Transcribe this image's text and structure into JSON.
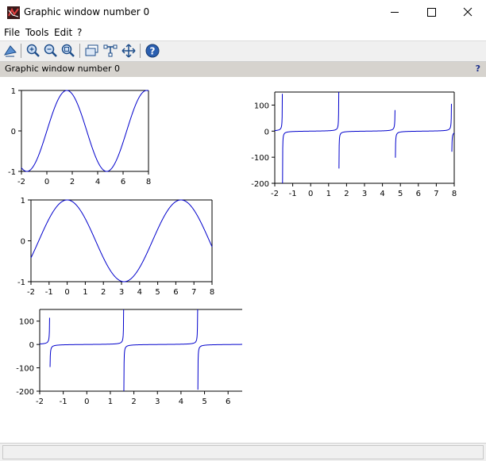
{
  "window": {
    "title": "Graphic window number 0"
  },
  "menu": {
    "file": "File",
    "tools": "Tools",
    "edit": "Edit",
    "help": "?"
  },
  "infobar": {
    "text": "Graphic window number 0",
    "help": "?"
  },
  "colors": {
    "curve": "#0000cc",
    "infobar_bg": "#d6d3ce"
  },
  "chart_data": [
    {
      "type": "line",
      "function": "sin(x)",
      "x_range": [
        -2,
        8
      ],
      "ylim": [
        -1,
        1
      ],
      "xticks": [
        "-2",
        "0",
        "2",
        "4",
        "6",
        "8"
      ],
      "yticks": [
        "1",
        "0",
        "-1"
      ]
    },
    {
      "type": "line",
      "function": "tan(x)",
      "x_range": [
        -2,
        8
      ],
      "ylim": [
        -200,
        150
      ],
      "xticks": [
        "-2",
        "-1",
        "0",
        "1",
        "2",
        "3",
        "4",
        "5",
        "6",
        "7",
        "8"
      ],
      "yticks": [
        "100",
        "0",
        "-100",
        "-200"
      ]
    },
    {
      "type": "line",
      "function": "cos(x)",
      "x_range": [
        -2,
        8
      ],
      "ylim": [
        -1,
        1
      ],
      "xticks": [
        "-2",
        "-1",
        "0",
        "1",
        "2",
        "3",
        "4",
        "5",
        "6",
        "7",
        "8"
      ],
      "yticks": [
        "1",
        "0",
        "-1"
      ]
    },
    {
      "type": "line",
      "function": "tan(x)",
      "x_range": [
        -2,
        6.6
      ],
      "ylim": [
        -200,
        150
      ],
      "xticks": [
        "-2",
        "-1",
        "0",
        "1",
        "2",
        "3",
        "4",
        "5",
        "6"
      ],
      "yticks": [
        "100",
        "0",
        "-100",
        "-200"
      ]
    }
  ]
}
